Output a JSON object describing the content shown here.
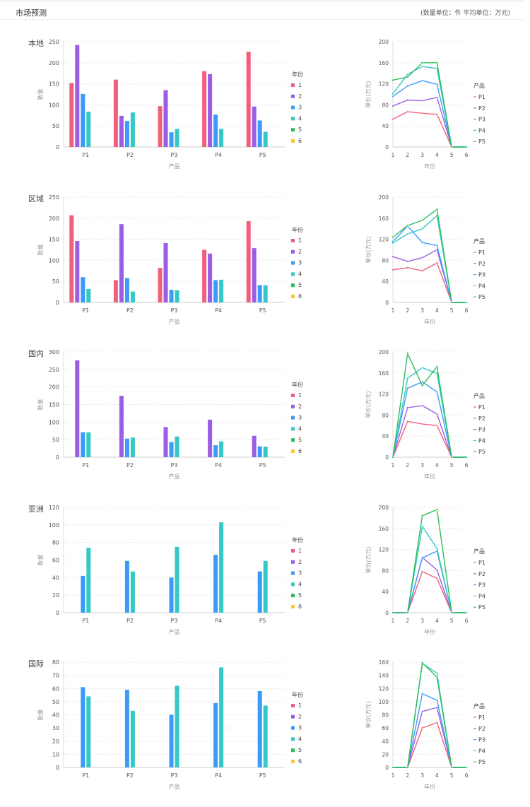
{
  "header": {
    "title": "市场预测",
    "unit_note": "(数量单位：件 平均单位：万元)"
  },
  "colors": {
    "years": [
      "#f0607a",
      "#9b5de5",
      "#3a9cf8",
      "#33c9c6",
      "#2dbd5a",
      "#fbc72c"
    ],
    "products": [
      "#f0607a",
      "#9b5de5",
      "#3a9cf8",
      "#33c9c6",
      "#2dbd5a"
    ]
  },
  "chart_data": [
    {
      "region": "本地",
      "bar": {
        "type": "bar",
        "xlabel": "产品",
        "ylabel": "数量",
        "legend_title": "年份",
        "ylim": [
          0,
          250
        ],
        "yticks": [
          0,
          50,
          100,
          150,
          200,
          250
        ],
        "categories": [
          "P1",
          "P2",
          "P3",
          "P4",
          "P5"
        ],
        "series": [
          {
            "name": "1",
            "values": [
              152,
              160,
              97,
              180,
              226
            ]
          },
          {
            "name": "2",
            "values": [
              242,
              74,
              135,
              173,
              96
            ]
          },
          {
            "name": "3",
            "values": [
              126,
              62,
              35,
              77,
              63
            ]
          },
          {
            "name": "4",
            "values": [
              84,
              82,
              43,
              43,
              36
            ]
          },
          {
            "name": "5",
            "values": [
              null,
              null,
              null,
              null,
              null
            ]
          },
          {
            "name": "6",
            "values": [
              null,
              null,
              null,
              null,
              null
            ]
          }
        ]
      },
      "line": {
        "type": "line",
        "xlabel": "年份",
        "ylabel": "单价(万元)",
        "legend_title": "产品",
        "ylim": [
          0,
          200
        ],
        "yticks": [
          0,
          40,
          80,
          120,
          160,
          200
        ],
        "x": [
          1,
          2,
          3,
          4,
          5,
          6
        ],
        "series": [
          {
            "name": "P1",
            "values": [
              53,
              67,
              64,
              62,
              0,
              0
            ]
          },
          {
            "name": "P2",
            "values": [
              78,
              89,
              88,
              94,
              0,
              0
            ]
          },
          {
            "name": "P3",
            "values": [
              96,
              116,
              126,
              119,
              0,
              0
            ]
          },
          {
            "name": "P4",
            "values": [
              101,
              138,
              153,
              149,
              0,
              0
            ]
          },
          {
            "name": "P5",
            "values": [
              127,
              133,
              160,
              160,
              0,
              0
            ]
          }
        ]
      }
    },
    {
      "region": "区域",
      "bar": {
        "type": "bar",
        "xlabel": "产品",
        "ylabel": "数量",
        "legend_title": "年份",
        "ylim": [
          0,
          250
        ],
        "yticks": [
          0,
          50,
          100,
          150,
          200,
          250
        ],
        "categories": [
          "P1",
          "P2",
          "P3",
          "P4",
          "P5"
        ],
        "series": [
          {
            "name": "1",
            "values": [
              207,
              53,
              82,
              125,
              193
            ]
          },
          {
            "name": "2",
            "values": [
              146,
              186,
              141,
              116,
              129
            ]
          },
          {
            "name": "3",
            "values": [
              60,
              58,
              30,
              53,
              41
            ]
          },
          {
            "name": "4",
            "values": [
              32,
              26,
              29,
              54,
              41
            ]
          },
          {
            "name": "5",
            "values": [
              null,
              null,
              null,
              null,
              null
            ]
          },
          {
            "name": "6",
            "values": [
              null,
              null,
              null,
              null,
              null
            ]
          }
        ]
      },
      "line": {
        "type": "line",
        "xlabel": "年份",
        "ylabel": "单价(万元)",
        "legend_title": "产品",
        "ylim": [
          0,
          200
        ],
        "yticks": [
          0,
          40,
          80,
          120,
          160,
          200
        ],
        "x": [
          1,
          2,
          3,
          4,
          5,
          6
        ],
        "series": [
          {
            "name": "P1",
            "values": [
              62,
              66,
              60,
              75,
              0,
              0
            ]
          },
          {
            "name": "P2",
            "values": [
              87,
              78,
              85,
              100,
              0,
              0
            ]
          },
          {
            "name": "P3",
            "values": [
              116,
              145,
              114,
              108,
              0,
              0
            ]
          },
          {
            "name": "P4",
            "values": [
              113,
              130,
              140,
              165,
              0,
              0
            ]
          },
          {
            "name": "P5",
            "values": [
              124,
              146,
              156,
              177,
              0,
              0
            ]
          }
        ]
      }
    },
    {
      "region": "国内",
      "bar": {
        "type": "bar",
        "xlabel": "产品",
        "ylabel": "数量",
        "legend_title": "年份",
        "ylim": [
          0,
          300
        ],
        "yticks": [
          0,
          50,
          100,
          150,
          200,
          250,
          300
        ],
        "categories": [
          "P1",
          "P2",
          "P3",
          "P4",
          "P5"
        ],
        "series": [
          {
            "name": "1",
            "values": [
              null,
              null,
              null,
              null,
              null
            ]
          },
          {
            "name": "2",
            "values": [
              276,
              175,
              86,
              107,
              61
            ]
          },
          {
            "name": "3",
            "values": [
              71,
              53,
              43,
              34,
              31
            ]
          },
          {
            "name": "4",
            "values": [
              71,
              56,
              59,
              45,
              30
            ]
          },
          {
            "name": "5",
            "values": [
              null,
              null,
              null,
              null,
              null
            ]
          },
          {
            "name": "6",
            "values": [
              null,
              null,
              null,
              null,
              null
            ]
          }
        ]
      },
      "line": {
        "type": "line",
        "xlabel": "年份",
        "ylabel": "单价(万元)",
        "legend_title": "产品",
        "ylim": [
          0,
          200
        ],
        "yticks": [
          0,
          40,
          80,
          120,
          160,
          200
        ],
        "x": [
          1,
          2,
          3,
          4,
          5,
          6
        ],
        "series": [
          {
            "name": "P1",
            "values": [
              0,
              68,
              63,
              60,
              0,
              0
            ]
          },
          {
            "name": "P2",
            "values": [
              0,
              94,
              98,
              82,
              0,
              0
            ]
          },
          {
            "name": "P3",
            "values": [
              0,
              131,
              143,
              124,
              0,
              0
            ]
          },
          {
            "name": "P4",
            "values": [
              0,
              150,
              170,
              159,
              0,
              0
            ]
          },
          {
            "name": "P5",
            "values": [
              0,
              197,
              136,
              172,
              0,
              0
            ]
          }
        ]
      }
    },
    {
      "region": "亚洲",
      "bar": {
        "type": "bar",
        "xlabel": "产品",
        "ylabel": "数量",
        "legend_title": "年份",
        "ylim": [
          0,
          120
        ],
        "yticks": [
          0,
          20,
          40,
          60,
          80,
          100,
          120
        ],
        "categories": [
          "P1",
          "P2",
          "P3",
          "P4",
          "P5"
        ],
        "series": [
          {
            "name": "1",
            "values": [
              null,
              null,
              null,
              null,
              null
            ]
          },
          {
            "name": "2",
            "values": [
              null,
              null,
              null,
              null,
              null
            ]
          },
          {
            "name": "3",
            "values": [
              42,
              59,
              40,
              66,
              47
            ]
          },
          {
            "name": "4",
            "values": [
              74,
              47,
              75,
              103,
              59
            ]
          },
          {
            "name": "5",
            "values": [
              null,
              null,
              null,
              null,
              null
            ]
          },
          {
            "name": "6",
            "values": [
              null,
              null,
              null,
              null,
              null
            ]
          }
        ]
      },
      "line": {
        "type": "line",
        "xlabel": "年份",
        "ylabel": "单价(万元)",
        "legend_title": "产品",
        "ylim": [
          0,
          200
        ],
        "yticks": [
          0,
          40,
          80,
          120,
          160,
          200
        ],
        "x": [
          1,
          2,
          3,
          4,
          5,
          6
        ],
        "series": [
          {
            "name": "P1",
            "values": [
              0,
              0,
              78,
              65,
              0,
              0
            ]
          },
          {
            "name": "P2",
            "values": [
              0,
              0,
              105,
              81,
              0,
              0
            ]
          },
          {
            "name": "P3",
            "values": [
              0,
              0,
              104,
              117,
              0,
              0
            ]
          },
          {
            "name": "P4",
            "values": [
              0,
              0,
              164,
              122,
              0,
              0
            ]
          },
          {
            "name": "P5",
            "values": [
              0,
              0,
              184,
              196,
              0,
              0
            ]
          }
        ]
      }
    },
    {
      "region": "国际",
      "bar": {
        "type": "bar",
        "xlabel": "产品",
        "ylabel": "数量",
        "legend_title": "年份",
        "ylim": [
          0,
          80
        ],
        "yticks": [
          0,
          10,
          20,
          30,
          40,
          50,
          60,
          70,
          80
        ],
        "categories": [
          "P1",
          "P2",
          "P3",
          "P4",
          "P5"
        ],
        "series": [
          {
            "name": "1",
            "values": [
              null,
              null,
              null,
              null,
              null
            ]
          },
          {
            "name": "2",
            "values": [
              null,
              null,
              null,
              null,
              null
            ]
          },
          {
            "name": "3",
            "values": [
              61,
              59,
              40,
              49,
              58
            ]
          },
          {
            "name": "4",
            "values": [
              54,
              43,
              62,
              76,
              47
            ]
          },
          {
            "name": "5",
            "values": [
              null,
              null,
              null,
              null,
              null
            ]
          },
          {
            "name": "6",
            "values": [
              null,
              null,
              null,
              null,
              null
            ]
          }
        ]
      },
      "line": {
        "type": "line",
        "xlabel": "年份",
        "ylabel": "单价(万元)",
        "legend_title": "产品",
        "ylim": [
          0,
          160
        ],
        "yticks": [
          0,
          20,
          40,
          60,
          80,
          100,
          120,
          140,
          160
        ],
        "x": [
          1,
          2,
          3,
          4,
          5,
          6
        ],
        "series": [
          {
            "name": "P1",
            "values": [
              0,
              0,
              60,
              68,
              0,
              0
            ]
          },
          {
            "name": "P2",
            "values": [
              0,
              0,
              85,
              91,
              0,
              0
            ]
          },
          {
            "name": "P3",
            "values": [
              0,
              0,
              112,
              102,
              0,
              0
            ]
          },
          {
            "name": "P4",
            "values": [
              0,
              0,
              158,
              143,
              0,
              0
            ]
          },
          {
            "name": "P5",
            "values": [
              0,
              0,
              159,
              137,
              0,
              0
            ]
          }
        ]
      }
    }
  ]
}
